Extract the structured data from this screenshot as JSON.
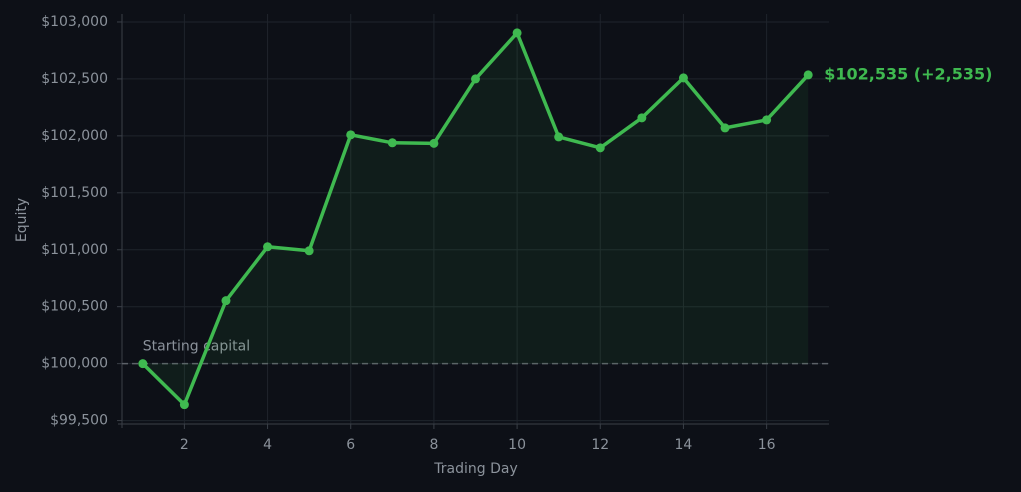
{
  "chart_data": {
    "type": "line",
    "x_label": "Trading Day",
    "y_label": "Equity",
    "x": [
      1,
      2,
      3,
      4,
      5,
      6,
      7,
      8,
      9,
      10,
      11,
      12,
      13,
      14,
      15,
      16,
      17
    ],
    "values": [
      100000,
      99640,
      100553,
      101026,
      100991,
      102009,
      101939,
      101934,
      102500,
      102904,
      101991,
      101895,
      102158,
      102509,
      102070,
      102140,
      102535
    ],
    "color": "#3fb950",
    "baseline": 100000,
    "baseline_label": "Starting capital",
    "end_label": "$102,535  (+2,535)",
    "xlim": [
      0.5,
      17.5
    ],
    "xticks": [
      2,
      4,
      6,
      8,
      10,
      12,
      14,
      16
    ],
    "ylim": [
      99470,
      103070
    ],
    "yticks": [
      {
        "value": 99500,
        "label": "$99,500"
      },
      {
        "value": 100000,
        "label": "$100,000"
      },
      {
        "value": 100500,
        "label": "$100,500"
      },
      {
        "value": 101000,
        "label": "$101,000"
      },
      {
        "value": 101500,
        "label": "$101,500"
      },
      {
        "value": 102000,
        "label": "$102,000"
      },
      {
        "value": 102500,
        "label": "$102,500"
      },
      {
        "value": 103000,
        "label": "$103,000"
      }
    ],
    "grid": true
  }
}
